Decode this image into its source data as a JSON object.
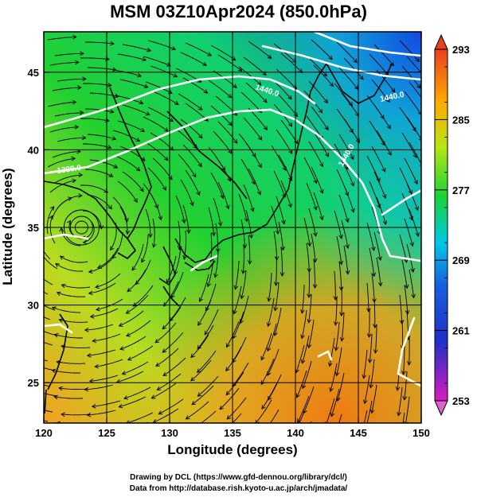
{
  "chart": {
    "title": "MSM 03Z10Apr2024 (850.0hPa)",
    "xlabel": "Longitude (degrees)",
    "ylabel": "Latitude  (degrees)",
    "credits": [
      "Drawing by DCL (https://www.gfd-dennou.org/library/dcl/)",
      "Data from http://database.rish.kyoto-u.ac.jp/arch/jmadata/"
    ]
  },
  "chart_data": {
    "type": "heatmap",
    "xlim": [
      120,
      150
    ],
    "ylim": [
      22.4,
      47.6
    ],
    "xticks": [
      120,
      125,
      130,
      135,
      140,
      145,
      150
    ],
    "yticks": [
      25,
      30,
      35,
      40,
      45
    ],
    "grid": true,
    "colorbar": {
      "min": 253,
      "max": 293,
      "labels": [
        253,
        261,
        269,
        277,
        285,
        293
      ],
      "arrow_ends": true
    },
    "contour_labels": [
      "1440.0",
      "1440.0",
      "1380.0",
      "1440.0"
    ]
  },
  "colors": {
    "text": "#000000",
    "contour": "#ffffff",
    "coast": "#000000",
    "colormap": [
      "#d81bc0",
      "#2030c8",
      "#00c8e6",
      "#19d23a",
      "#b4e612",
      "#ffaa00",
      "#e8401e"
    ]
  }
}
